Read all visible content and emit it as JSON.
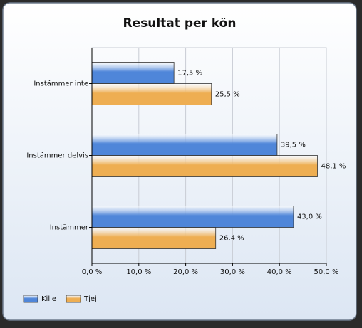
{
  "chart_data": {
    "type": "bar",
    "orientation": "horizontal",
    "title": "Resultat per kön",
    "categories": [
      "Instämmer inte",
      "Instämmer delvis",
      "Instämmer"
    ],
    "series": [
      {
        "name": "Kille",
        "color": "#4f86d9",
        "values": [
          17.5,
          39.5,
          43.0
        ],
        "value_labels": [
          "17,5 %",
          "39,5 %",
          "43,0 %"
        ]
      },
      {
        "name": "Tjej",
        "color": "#eeae52",
        "values": [
          25.5,
          48.1,
          26.4
        ],
        "value_labels": [
          "25,5 %",
          "48,1 %",
          "26,4 %"
        ]
      }
    ],
    "xlim": [
      0,
      50
    ],
    "xticks": [
      {
        "value": 0,
        "label": "0,0 %"
      },
      {
        "value": 10,
        "label": "10,0 %"
      },
      {
        "value": 20,
        "label": "20,0 %"
      },
      {
        "value": 30,
        "label": "30,0 %"
      },
      {
        "value": 40,
        "label": "40,0 %"
      },
      {
        "value": 50,
        "label": "50,0 %"
      }
    ],
    "grid": true,
    "legend": "bottom-left"
  }
}
